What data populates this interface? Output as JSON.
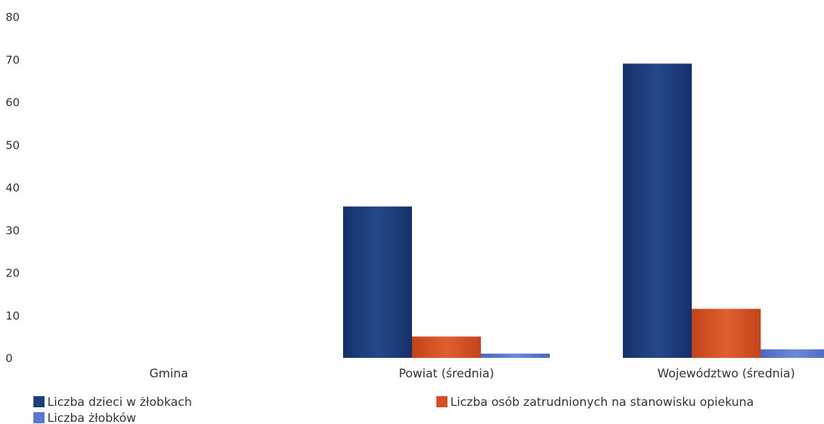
{
  "chart_data": {
    "type": "bar",
    "title": "",
    "xlabel": "",
    "ylabel": "",
    "ylim": [
      0,
      80
    ],
    "yticks": [
      0,
      10,
      20,
      30,
      40,
      50,
      60,
      70,
      80
    ],
    "grid": false,
    "categories": [
      "Gmina",
      "Powiat (średnia)",
      "Województwo (średnia)"
    ],
    "series": [
      {
        "name": "Liczba dzieci w żłobkach",
        "color": "#1c3f7c",
        "values": [
          0,
          35.5,
          69
        ]
      },
      {
        "name": "Liczba osób zatrudnionych na stanowisku opiekuna",
        "color": "#d24f26",
        "values": [
          0,
          5,
          11.5
        ]
      },
      {
        "name": "Liczba żłobków",
        "color": "#5a78cc",
        "values": [
          0,
          1,
          2
        ]
      }
    ],
    "legend_position": "bottom"
  }
}
